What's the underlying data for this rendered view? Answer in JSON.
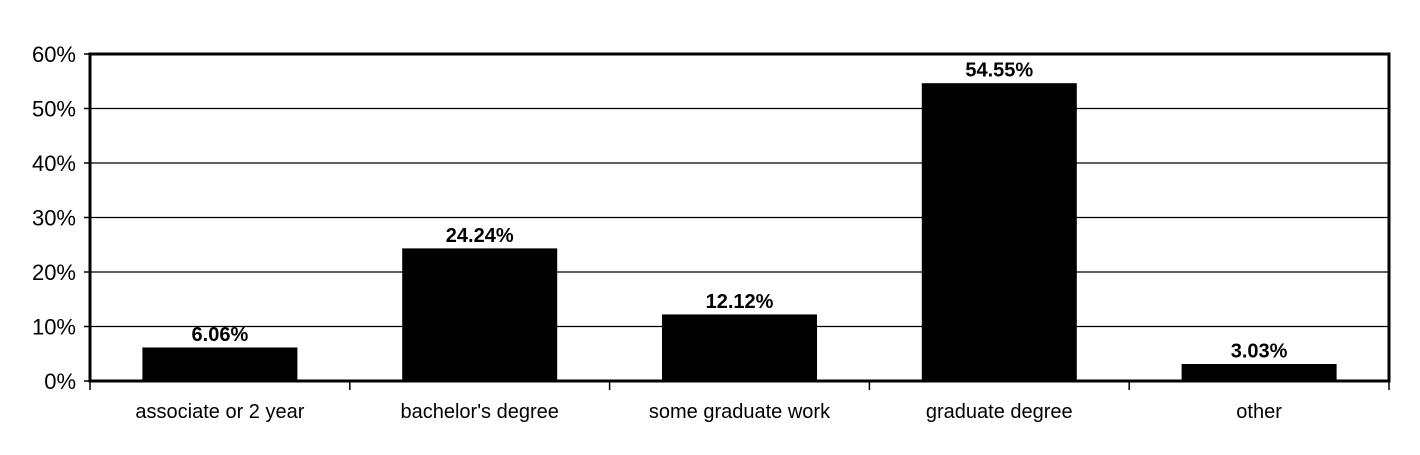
{
  "chart_data": {
    "type": "bar",
    "title": "",
    "xlabel": "",
    "ylabel": "",
    "categories": [
      "associate or 2 year",
      "bachelor's degree",
      "some graduate work",
      "graduate degree",
      "other"
    ],
    "values": [
      6.06,
      24.24,
      12.12,
      54.55,
      3.03
    ],
    "data_labels": [
      "6.06%",
      "24.24%",
      "12.12%",
      "54.55%",
      "3.03%"
    ],
    "ylim": [
      0,
      60
    ],
    "yticks": [
      0,
      10,
      20,
      30,
      40,
      50,
      60
    ],
    "ytick_labels": [
      "0%",
      "10%",
      "20%",
      "30%",
      "40%",
      "50%",
      "60%"
    ],
    "grid": true,
    "legend": "none",
    "colors": {
      "bar": "#000000",
      "grid": "#000000",
      "background": "#ffffff"
    }
  }
}
